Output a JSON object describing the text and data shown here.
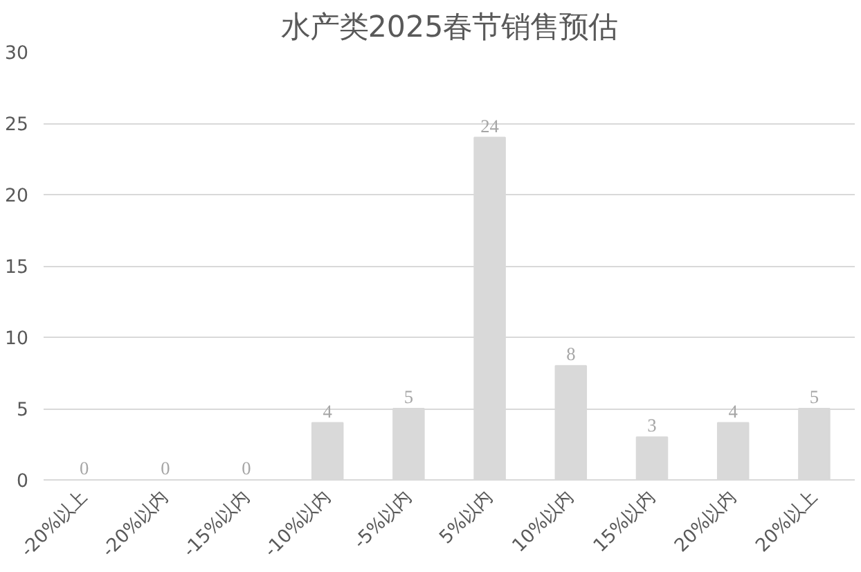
{
  "chart_data": {
    "type": "bar",
    "title": "水产类2025春节销售预估",
    "categories": [
      "-20%以上",
      "-20%以内",
      "-15%以内",
      "-10%以内",
      "-5%以内",
      "5%以内",
      "10%以内",
      "15%以内",
      "20%以内",
      "20%以上"
    ],
    "values": [
      0,
      0,
      0,
      4,
      5,
      24,
      8,
      3,
      4,
      5
    ],
    "color": "#d9d9d9",
    "ylim": [
      0,
      30
    ],
    "yticks": [
      0,
      5,
      10,
      15,
      20,
      25,
      30
    ],
    "grid": "y",
    "data_labels": true
  }
}
